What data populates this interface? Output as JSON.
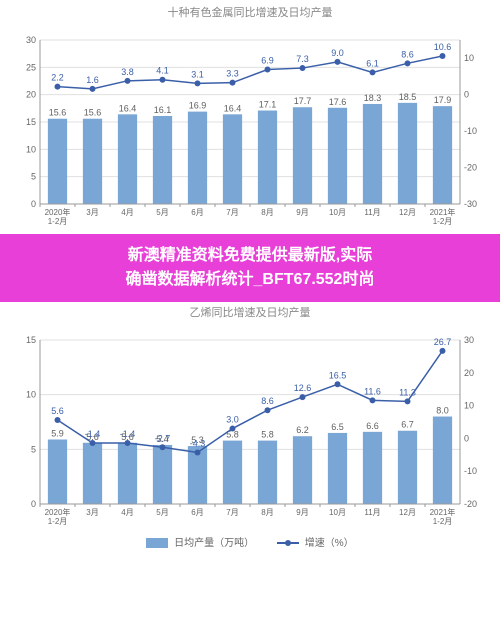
{
  "chart1": {
    "type": "bar+line",
    "title": "十种有色金属同比增速及日均产量",
    "title_color": "#888888",
    "title_fontsize": 11,
    "categories": [
      "2020年\n1-2月",
      "3月",
      "4月",
      "5月",
      "6月",
      "7月",
      "8月",
      "9月",
      "10月",
      "11月",
      "12月",
      "2021年\n1-2月"
    ],
    "bars": {
      "values": [
        15.6,
        15.6,
        16.4,
        16.1,
        16.9,
        16.4,
        17.1,
        17.7,
        17.6,
        18.3,
        18.5,
        17.9
      ],
      "color": "#7aa6d6",
      "width": 0.55,
      "ylim": [
        0,
        30
      ],
      "yticks": [
        0,
        5,
        10,
        15,
        20,
        25,
        30
      ],
      "label_color": "#606060",
      "label_fontsize": 9
    },
    "line": {
      "values": [
        2.2,
        1.6,
        3.8,
        4.1,
        3.1,
        3.3,
        6.9,
        7.3,
        9.0,
        6.1,
        8.6,
        10.6
      ],
      "color": "#3a5fa8",
      "marker": "circle",
      "marker_size": 3,
      "line_width": 1.5,
      "ylim": [
        -30,
        15
      ],
      "yticks": [
        -30,
        -20,
        -10,
        0,
        10
      ],
      "label_color": "#3a5fa8",
      "label_fontsize": 9
    },
    "grid_color": "#e0e0e0",
    "background_color": "#ffffff",
    "legend_items": [
      "日均产量（万吨）",
      "增速（%）"
    ],
    "legend_visible": false
  },
  "banner": {
    "line1": "新澳精准资料免费提供最新版,实际",
    "line2": "确凿数据解析统计_BFT67.552时尚",
    "bg_color": "#e83fd8",
    "text_color": "#ffffff",
    "font_size": 16
  },
  "chart2": {
    "type": "bar+line",
    "title": "乙烯同比增速及日均产量",
    "title_color": "#888888",
    "title_fontsize": 11,
    "categories": [
      "2020年\n1-2月",
      "3月",
      "4月",
      "5月",
      "6月",
      "7月",
      "8月",
      "9月",
      "10月",
      "11月",
      "12月",
      "2021年\n1-2月"
    ],
    "bars": {
      "values": [
        5.9,
        5.6,
        5.6,
        5.4,
        5.3,
        5.8,
        5.8,
        6.2,
        6.5,
        6.6,
        6.7,
        8.0
      ],
      "color": "#7aa6d6",
      "width": 0.55,
      "ylim": [
        0,
        15
      ],
      "yticks": [
        0,
        5,
        10,
        15
      ],
      "label_color": "#606060",
      "label_fontsize": 9
    },
    "line": {
      "values": [
        5.6,
        -1.4,
        -1.4,
        -2.7,
        -4.3,
        3.0,
        8.6,
        12.6,
        16.5,
        11.6,
        11.3,
        26.7
      ],
      "color": "#3a5fa8",
      "marker": "circle",
      "marker_size": 3,
      "line_width": 1.5,
      "ylim": [
        -20,
        30
      ],
      "yticks": [
        -20,
        -10,
        0,
        10,
        20,
        30
      ],
      "label_color": "#3a5fa8",
      "label_fontsize": 9
    },
    "grid_color": "#e0e0e0",
    "background_color": "#ffffff",
    "legend": {
      "items": [
        {
          "label": "日均产量（万吨）",
          "type": "bar",
          "color": "#7aa6d6"
        },
        {
          "label": "增速（%）",
          "type": "line",
          "color": "#3a5fa8"
        }
      ]
    }
  }
}
